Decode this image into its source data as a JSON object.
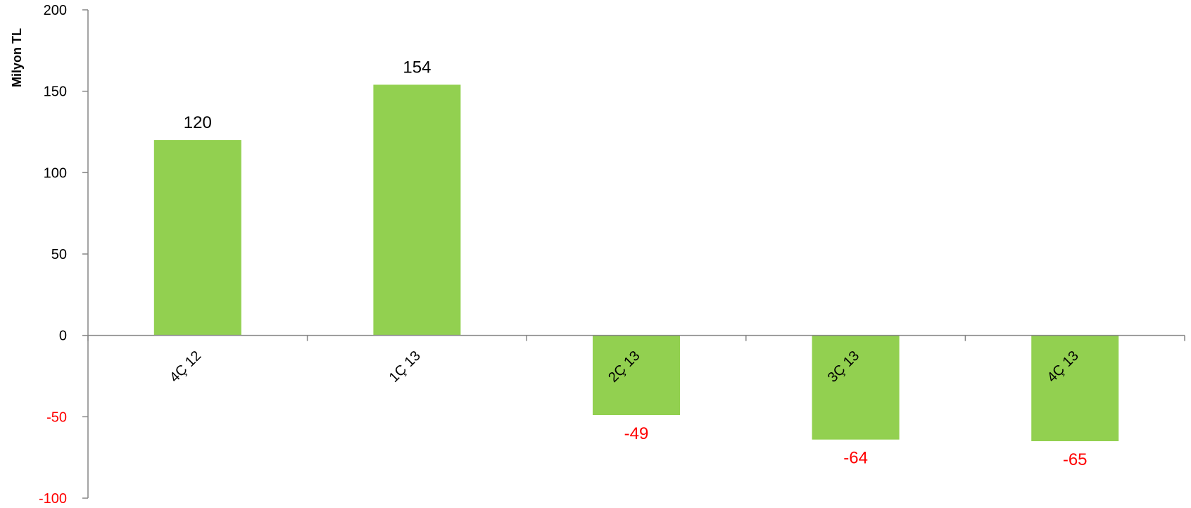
{
  "chart_data": {
    "type": "bar",
    "title": "",
    "xlabel": "",
    "ylabel": "Milyon TL",
    "categories": [
      "4Ç 12",
      "1Ç 13",
      "2Ç 13",
      "3Ç 13",
      "4Ç 13"
    ],
    "values": [
      120,
      154,
      -49,
      -64,
      -65
    ],
    "data_labels": [
      "120",
      "154",
      "-49",
      "-64",
      "-65"
    ],
    "ylim": [
      -100,
      200
    ],
    "yticks": [
      200,
      150,
      100,
      50,
      0,
      -50,
      -100
    ],
    "ytick_labels": [
      "200",
      "150",
      "100",
      "50",
      "0",
      "-50",
      "-100"
    ],
    "grid": false,
    "legend": "none",
    "colors": {
      "bar": "#92d050",
      "axis": "#868686",
      "positive_text": "#000000",
      "negative_text": "#ff0000"
    }
  }
}
